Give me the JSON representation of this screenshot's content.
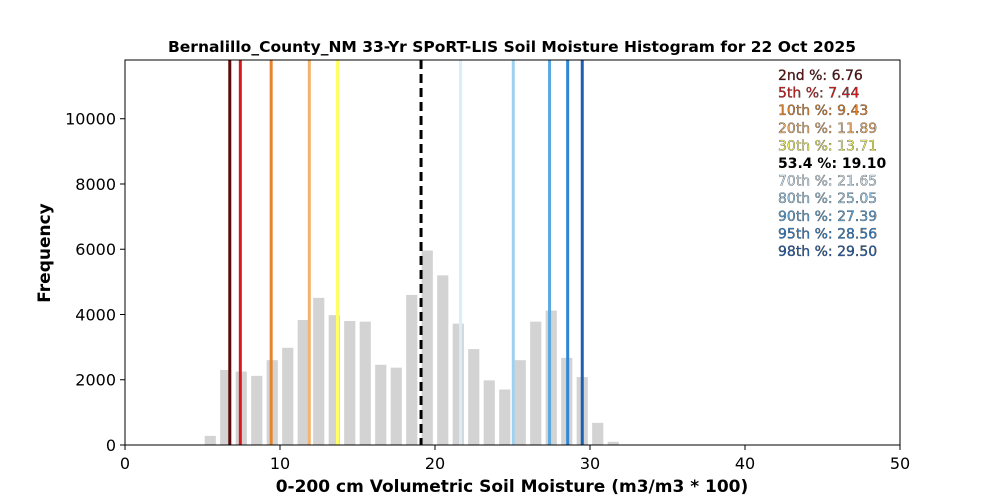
{
  "chart_data": {
    "type": "bar",
    "title": "Bernalillo_County_NM 33-Yr SPoRT-LIS Soil Moisture Histogram for 22 Oct 2025",
    "xlabel": "0-200 cm Volumetric Soil Moisture (m3/m3 * 100)",
    "ylabel": "Frequency",
    "xlim": [
      0,
      50
    ],
    "ylim": [
      0,
      11800
    ],
    "xticks": [
      0,
      10,
      20,
      30,
      40,
      50
    ],
    "yticks": [
      0,
      2000,
      4000,
      6000,
      8000,
      10000
    ],
    "bar_color": "#d3d3d3",
    "bin_width": 1.0,
    "bars": [
      {
        "x": 5.5,
        "value": 280
      },
      {
        "x": 6.5,
        "value": 2300
      },
      {
        "x": 7.5,
        "value": 2250
      },
      {
        "x": 8.5,
        "value": 2120
      },
      {
        "x": 9.5,
        "value": 2600
      },
      {
        "x": 10.5,
        "value": 2980
      },
      {
        "x": 11.5,
        "value": 3830
      },
      {
        "x": 12.5,
        "value": 4510
      },
      {
        "x": 13.5,
        "value": 3980
      },
      {
        "x": 14.5,
        "value": 3800
      },
      {
        "x": 15.5,
        "value": 3780
      },
      {
        "x": 16.5,
        "value": 2460
      },
      {
        "x": 17.5,
        "value": 2370
      },
      {
        "x": 18.5,
        "value": 4600
      },
      {
        "x": 19.5,
        "value": 5960
      },
      {
        "x": 20.5,
        "value": 5200
      },
      {
        "x": 21.5,
        "value": 3720
      },
      {
        "x": 22.5,
        "value": 2940
      },
      {
        "x": 23.5,
        "value": 1980
      },
      {
        "x": 24.5,
        "value": 1700
      },
      {
        "x": 25.5,
        "value": 2600
      },
      {
        "x": 26.5,
        "value": 3780
      },
      {
        "x": 27.5,
        "value": 4120
      },
      {
        "x": 28.5,
        "value": 2670
      },
      {
        "x": 29.5,
        "value": 2080
      },
      {
        "x": 30.5,
        "value": 680
      },
      {
        "x": 31.5,
        "value": 100
      }
    ],
    "percentile_lines": [
      {
        "label": "2nd %: 6.76",
        "value": 6.76,
        "color": "#5c0a0a",
        "dashed": false
      },
      {
        "label": "5th %: 7.44",
        "value": 7.44,
        "color": "#d7191c",
        "dashed": false
      },
      {
        "label": "10th %: 9.43",
        "value": 9.43,
        "color": "#e6852b",
        "dashed": false
      },
      {
        "label": "20th %: 11.89",
        "value": 11.89,
        "color": "#f4b36c",
        "dashed": false
      },
      {
        "label": "30th %: 13.71",
        "value": 13.71,
        "color": "#ffff66",
        "dashed": false
      },
      {
        "label": "53.4 %: 19.10",
        "value": 19.1,
        "color": "#000000",
        "dashed": true
      },
      {
        "label": "70th %: 21.65",
        "value": 21.65,
        "color": "#d8eefb",
        "dashed": false
      },
      {
        "label": "80th %: 25.05",
        "value": 25.05,
        "color": "#9fd0f0",
        "dashed": false
      },
      {
        "label": "90th %: 27.39",
        "value": 27.39,
        "color": "#5aa9e0",
        "dashed": false
      },
      {
        "label": "95th %: 28.56",
        "value": 28.56,
        "color": "#2f86d6",
        "dashed": false
      },
      {
        "label": "98th %: 29.50",
        "value": 29.5,
        "color": "#1f5fb0",
        "dashed": false
      }
    ],
    "legend_placement": "top-right",
    "grid": false
  }
}
